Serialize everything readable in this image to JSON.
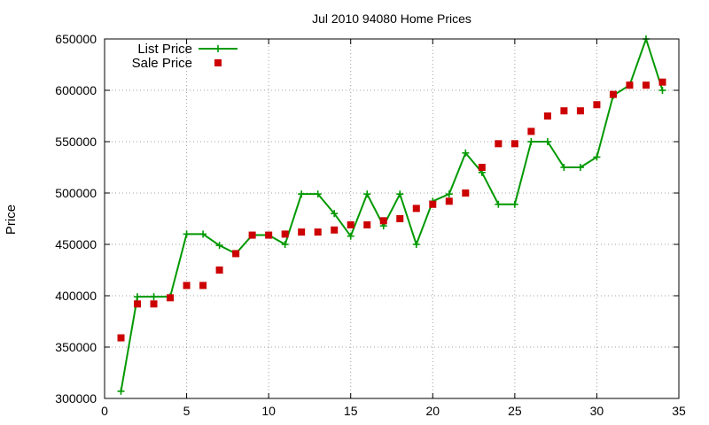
{
  "chart_data": {
    "type": "line",
    "title": "Jul 2010 94080 Home Prices",
    "xlabel": "",
    "ylabel": "Price",
    "xlim": [
      0,
      35
    ],
    "ylim": [
      300000,
      650000
    ],
    "x_ticks": [
      0,
      5,
      10,
      15,
      20,
      25,
      30,
      35
    ],
    "y_ticks": [
      300000,
      350000,
      400000,
      450000,
      500000,
      550000,
      600000,
      650000
    ],
    "grid": true,
    "legend_position": "top-left",
    "series": [
      {
        "name": "List Price",
        "style": "line-plus",
        "color": "#009900",
        "x": [
          1,
          2,
          3,
          4,
          5,
          6,
          7,
          8,
          9,
          10,
          11,
          12,
          13,
          14,
          15,
          16,
          17,
          18,
          19,
          20,
          21,
          22,
          23,
          24,
          25,
          26,
          27,
          28,
          29,
          30,
          31,
          32,
          33,
          34
        ],
        "values": [
          307000,
          399000,
          399000,
          399000,
          460000,
          460000,
          449000,
          441000,
          459000,
          459000,
          450000,
          499000,
          499000,
          480000,
          458000,
          499000,
          468000,
          499000,
          450000,
          492000,
          499000,
          539000,
          520000,
          489000,
          489000,
          550000,
          550000,
          525000,
          525000,
          535000,
          595000,
          605000,
          650000,
          600000
        ]
      },
      {
        "name": "Sale Price",
        "style": "square-markers",
        "color": "#cc0000",
        "x": [
          1,
          2,
          3,
          4,
          5,
          6,
          7,
          8,
          9,
          10,
          11,
          12,
          13,
          14,
          15,
          16,
          17,
          18,
          19,
          20,
          21,
          22,
          23,
          24,
          25,
          26,
          27,
          28,
          29,
          30,
          31,
          32,
          33,
          34
        ],
        "values": [
          359000,
          392000,
          392000,
          398000,
          410000,
          410000,
          425000,
          441000,
          459000,
          459000,
          460000,
          462000,
          462000,
          464000,
          469000,
          469000,
          473000,
          475000,
          485000,
          489000,
          492000,
          500000,
          525000,
          548000,
          548000,
          560000,
          575000,
          580000,
          580000,
          586000,
          596000,
          605000,
          605000,
          608000
        ]
      }
    ]
  }
}
